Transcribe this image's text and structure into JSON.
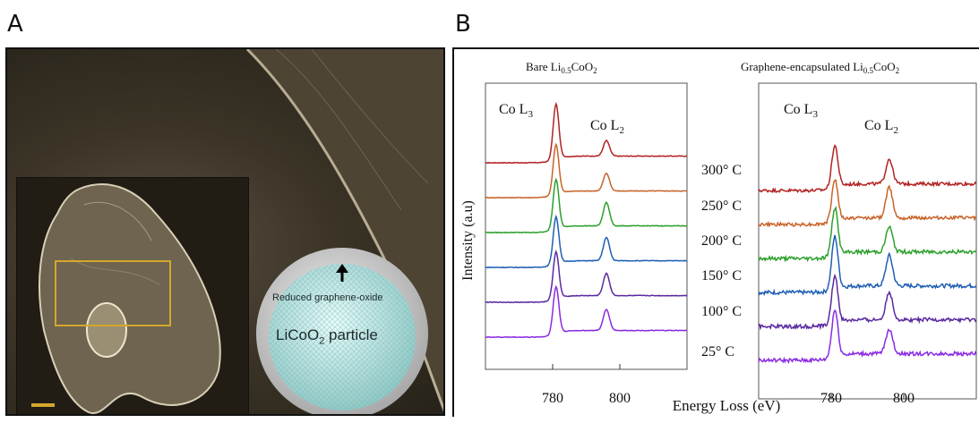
{
  "figure": {
    "panel_a_letter": "A",
    "panel_b_letter": "B"
  },
  "panel_a": {
    "label_rgo": "Reduced graphene-oxide",
    "label_particle_main": "LiCoO",
    "label_particle_sub": "2",
    "label_particle_tail": " particle"
  },
  "panel_b": {
    "xlabel": "Energy Loss (eV)",
    "ylabel": "Intensity (a.u)",
    "temps": [
      "300° C",
      "250° C",
      "200° C",
      "150° C",
      "100° C",
      "25° C"
    ]
  },
  "chart_data": [
    {
      "type": "line",
      "title": "Bare Li0.5CoO2",
      "title_parts": [
        "Bare Li",
        "0.5",
        "CoO",
        "2"
      ],
      "peak_labels": [
        "Co L3",
        "Co L2"
      ],
      "xlabel": "Energy Loss (eV)",
      "ylabel": "Intensity (a.u)",
      "xlim": [
        760,
        820
      ],
      "xticks": [
        780,
        800
      ],
      "peaks": [
        781,
        796
      ],
      "series": [
        {
          "name": "300° C",
          "color": "#b22222",
          "offset": 5,
          "peak1": 1.0,
          "peak2": 0.28,
          "noise": 0.012
        },
        {
          "name": "250° C",
          "color": "#c8642a",
          "offset": 4,
          "peak1": 0.9,
          "peak2": 0.32,
          "noise": 0.012
        },
        {
          "name": "200° C",
          "color": "#2ca02c",
          "offset": 3,
          "peak1": 0.9,
          "peak2": 0.42,
          "noise": 0.012
        },
        {
          "name": "150° C",
          "color": "#1f5fb4",
          "offset": 2,
          "peak1": 0.85,
          "peak2": 0.42,
          "noise": 0.012
        },
        {
          "name": "100° C",
          "color": "#5a2aa0",
          "offset": 1,
          "peak1": 0.85,
          "peak2": 0.4,
          "noise": 0.012
        },
        {
          "name": "25° C",
          "color": "#8a2be2",
          "offset": 0,
          "peak1": 0.85,
          "peak2": 0.38,
          "noise": 0.012
        }
      ]
    },
    {
      "type": "line",
      "title": "Graphene-encapsulated Li0.5CoO2",
      "title_parts": [
        "Graphene-encapsulated Li",
        "0.5",
        "CoO",
        "2"
      ],
      "peak_labels": [
        "Co L3",
        "Co L2"
      ],
      "xlabel": "Energy Loss (eV)",
      "xlim": [
        760,
        820
      ],
      "xticks": [
        780,
        800
      ],
      "peaks": [
        781,
        796
      ],
      "series": [
        {
          "name": "300° C",
          "color": "#b22222",
          "offset": 5,
          "peak1": 0.75,
          "peak2": 0.45,
          "noise": 0.06
        },
        {
          "name": "250° C",
          "color": "#c8642a",
          "offset": 4,
          "peak1": 0.75,
          "peak2": 0.55,
          "noise": 0.06
        },
        {
          "name": "200° C",
          "color": "#2ca02c",
          "offset": 3,
          "peak1": 0.85,
          "peak2": 0.45,
          "noise": 0.07
        },
        {
          "name": "150° C",
          "color": "#1f5fb4",
          "offset": 2,
          "peak1": 0.95,
          "peak2": 0.55,
          "noise": 0.07
        },
        {
          "name": "100° C",
          "color": "#5a2aa0",
          "offset": 1,
          "peak1": 0.85,
          "peak2": 0.5,
          "noise": 0.07
        },
        {
          "name": "25° C",
          "color": "#8a2be2",
          "offset": 0,
          "peak1": 0.85,
          "peak2": 0.45,
          "noise": 0.07
        }
      ]
    }
  ]
}
